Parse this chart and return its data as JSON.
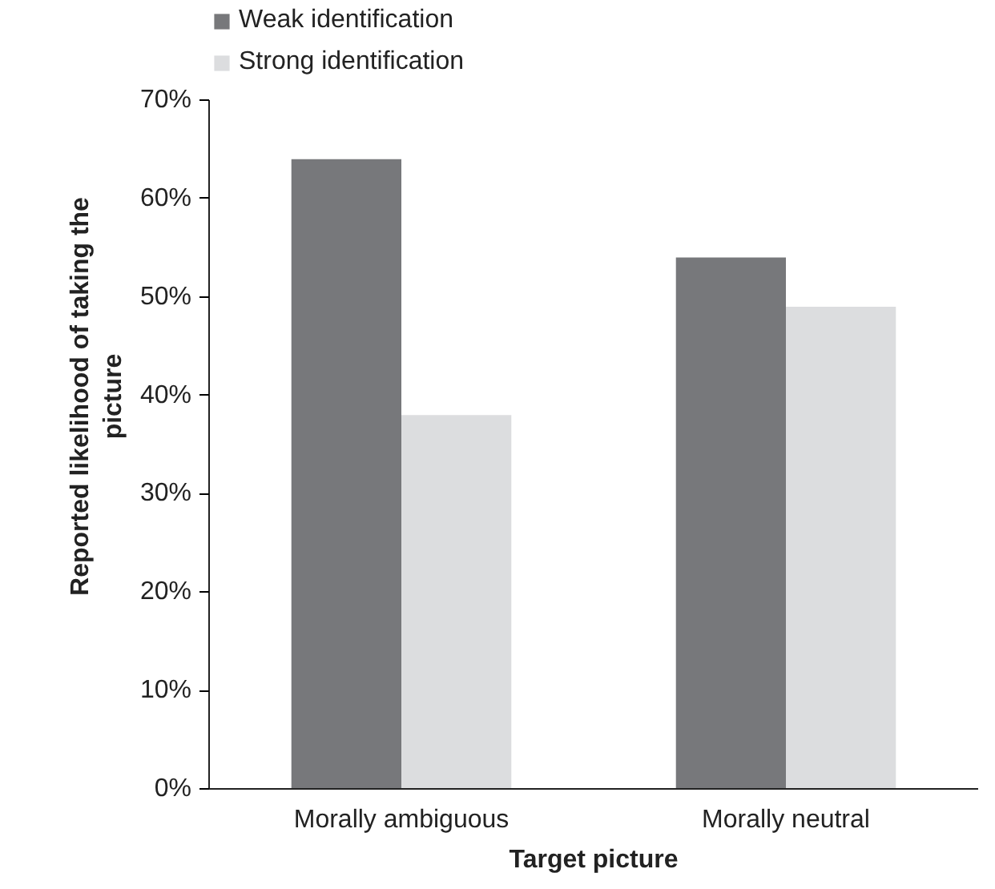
{
  "chart_data": {
    "type": "bar",
    "xlabel": "Target picture",
    "ylabel": "Reported likelihood of taking the picture",
    "categories": [
      "Morally ambiguous",
      "Morally neutral"
    ],
    "series": [
      {
        "name": "Weak identification",
        "color": "#77787b",
        "values": [
          64,
          54
        ]
      },
      {
        "name": "Strong identification",
        "color": "#dcdddf",
        "values": [
          38,
          49
        ]
      }
    ],
    "ylim": [
      0,
      70
    ],
    "yticks": [
      {
        "value": 0,
        "label": "0%"
      },
      {
        "value": 10,
        "label": "10%"
      },
      {
        "value": 20,
        "label": "20%"
      },
      {
        "value": 30,
        "label": "30%"
      },
      {
        "value": 40,
        "label": "40%"
      },
      {
        "value": 50,
        "label": "50%"
      },
      {
        "value": 60,
        "label": "60%"
      },
      {
        "value": 70,
        "label": "70%"
      }
    ],
    "grid": false,
    "legend": "top left"
  }
}
